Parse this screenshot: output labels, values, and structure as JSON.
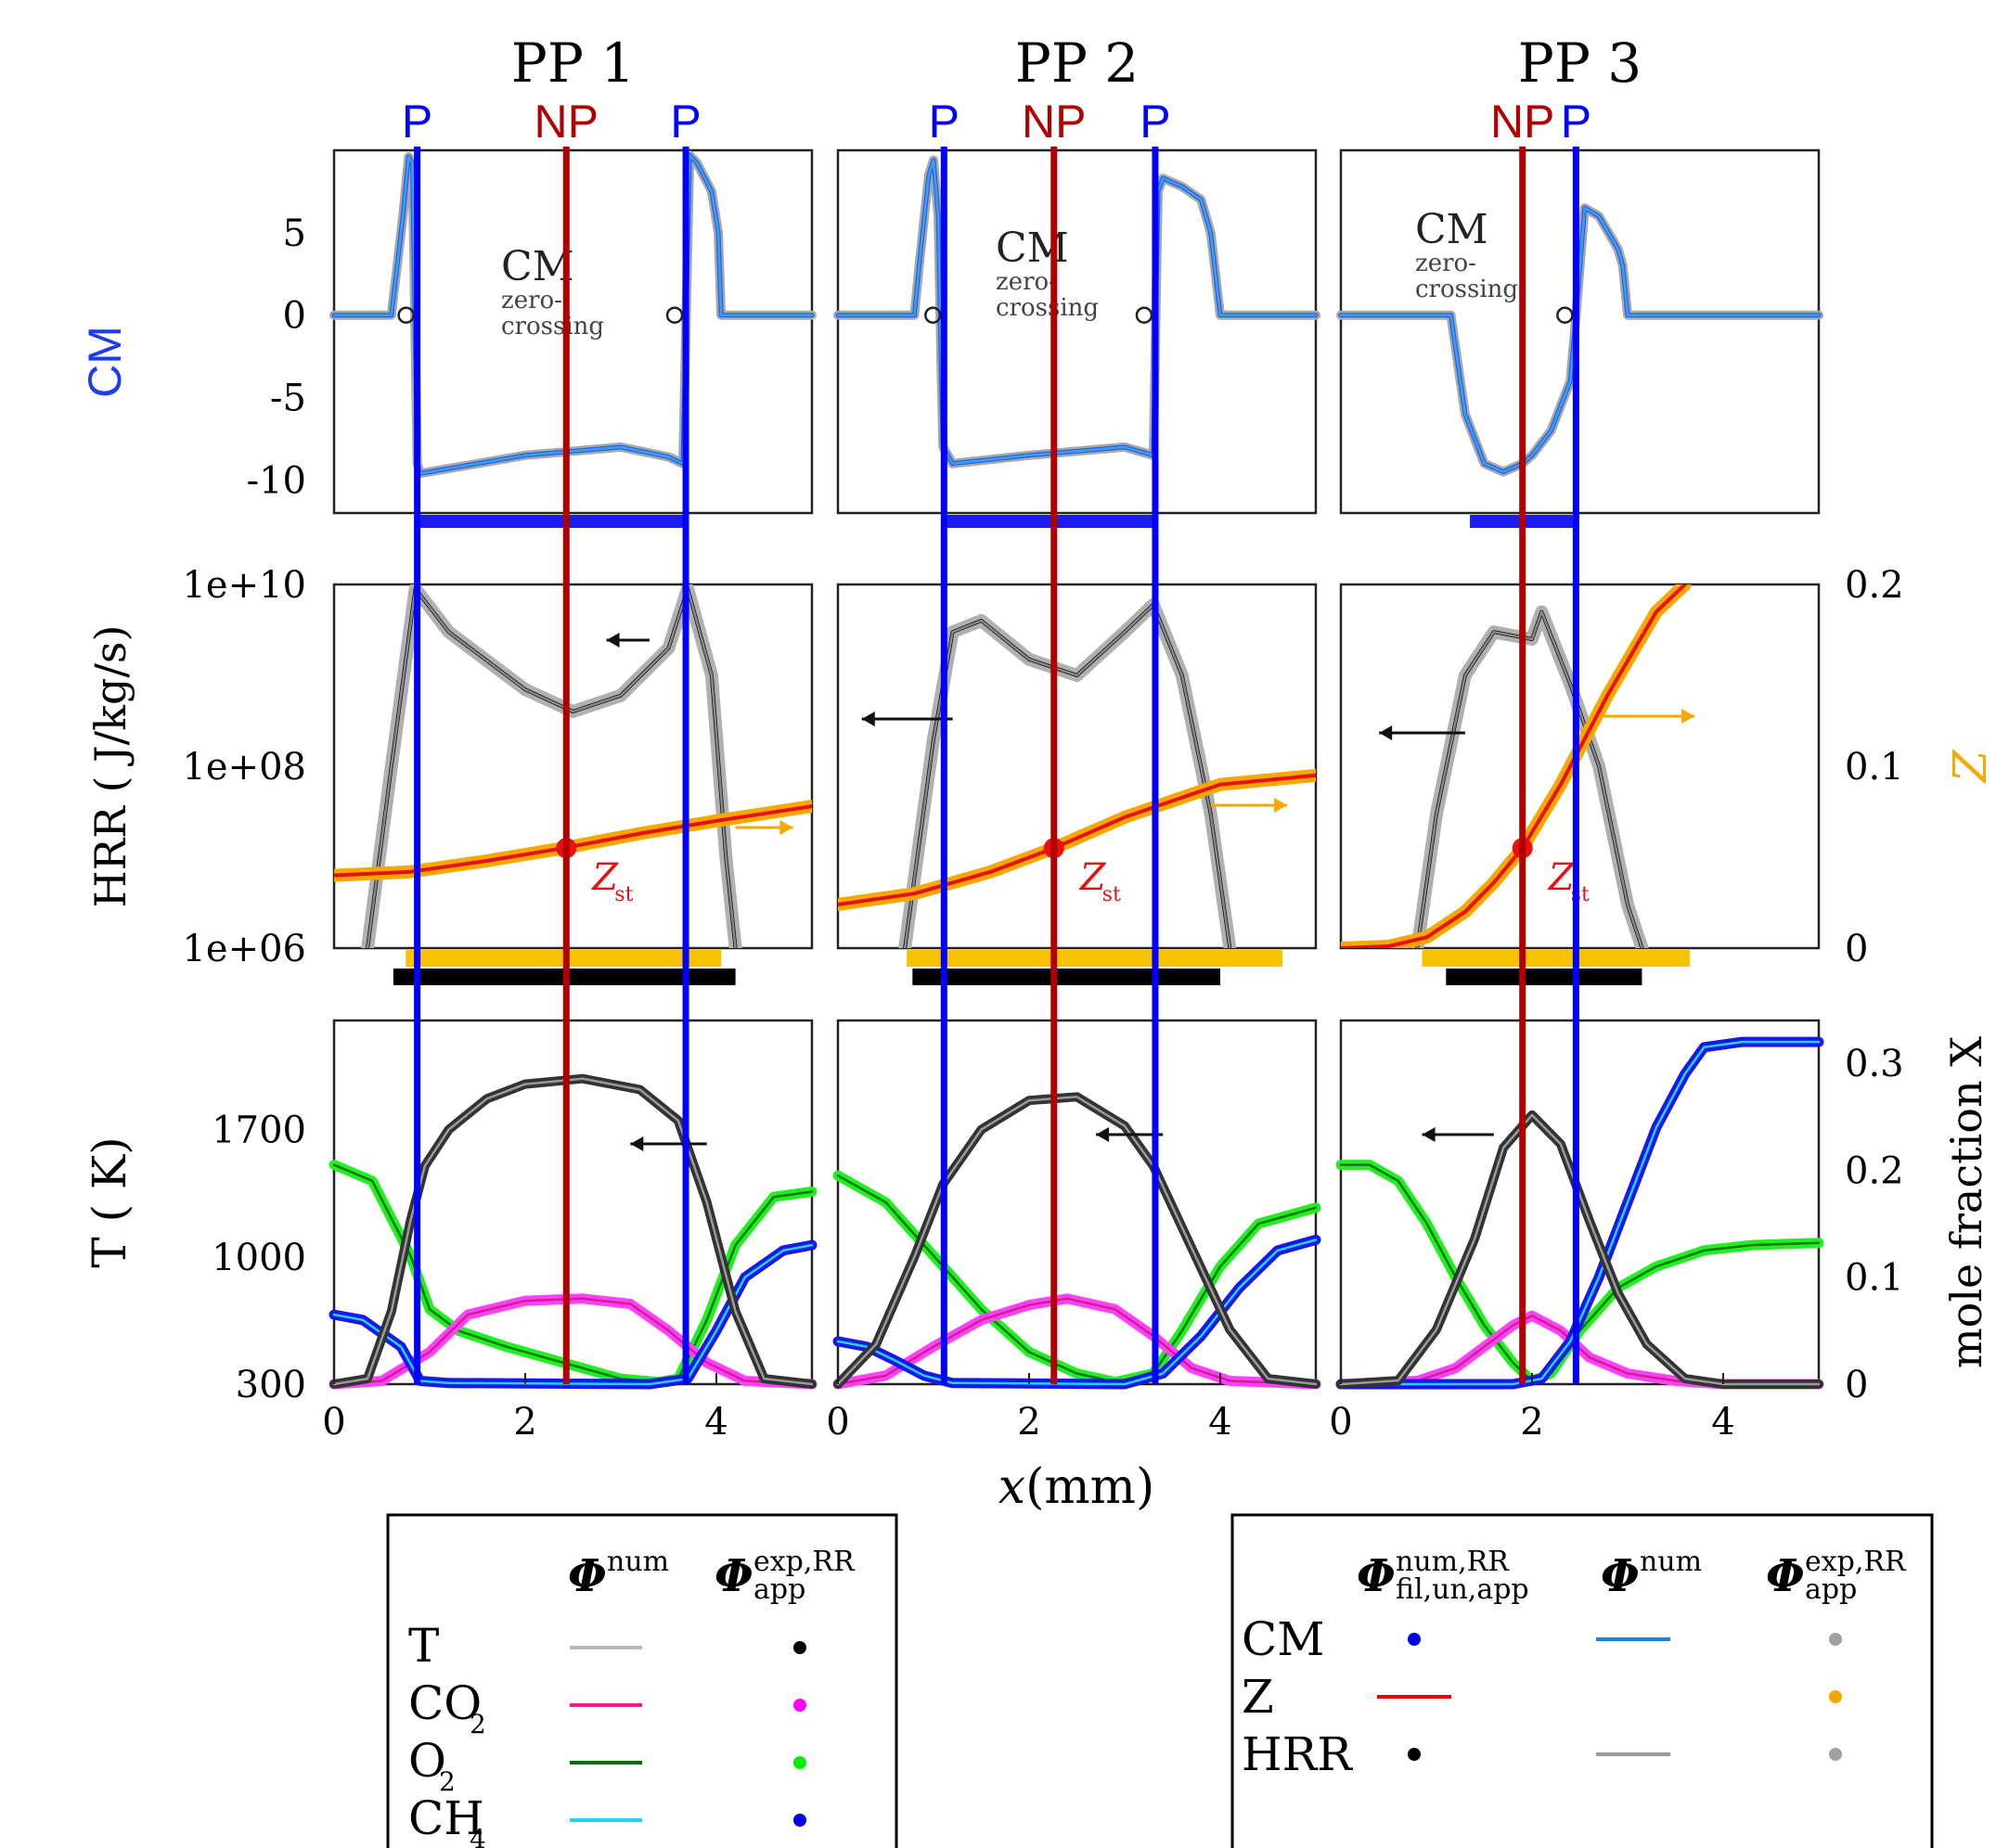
{
  "columns": [
    {
      "title": "PP 1",
      "markers": [
        {
          "label": "P",
          "x": 0.87,
          "color": "#0000ff"
        },
        {
          "label": "NP",
          "x": 2.43,
          "color": "#b00000"
        },
        {
          "label": "P",
          "x": 3.68,
          "color": "#0000ff"
        }
      ]
    },
    {
      "title": "PP 2",
      "markers": [
        {
          "label": "P",
          "x": 1.11,
          "color": "#0000ff"
        },
        {
          "label": "NP",
          "x": 2.26,
          "color": "#b00000"
        },
        {
          "label": "P",
          "x": 3.32,
          "color": "#0000ff"
        }
      ]
    },
    {
      "title": "PP 3",
      "markers": [
        {
          "label": "NP",
          "x": 1.9,
          "color": "#b00000"
        },
        {
          "label": "P",
          "x": 2.46,
          "color": "#0000ff"
        }
      ]
    }
  ],
  "axes": {
    "cm_label": "CM",
    "hrr_label": "HRR ( J/kg/s)",
    "t_label": "T ( K)",
    "z_label": "Z",
    "x_label_var": "x",
    "x_label_unit": "(mm)",
    "mole_label": "mole fraction X",
    "cm_ticks": [
      "5",
      "0",
      "-5",
      "-10"
    ],
    "hrr_ticks": [
      "1e+10",
      "1e+08",
      "1e+06"
    ],
    "t_ticks": [
      "1700",
      "1000",
      "300"
    ],
    "z_ticks": [
      "0.2",
      "0.1",
      "0"
    ],
    "mole_ticks": [
      "0.3",
      "0.2",
      "0.1",
      "0"
    ],
    "x_ticks": [
      "0",
      "2",
      "4"
    ]
  },
  "annotations": {
    "cm": "CM",
    "zero_line1": "zero-",
    "zero_line2": "crossing",
    "zst_main": "Z",
    "zst_sub": "st"
  },
  "legend1": {
    "header_num": "Φ",
    "header_num_sup": "num",
    "header_exp": "Φ",
    "header_exp_sup": "exp,RR",
    "header_exp_sub": "app",
    "rows": [
      {
        "main": "T",
        "sub": "",
        "line_color": "#b8b8b8",
        "dot_color": "#000000"
      },
      {
        "main": "CO",
        "sub": "2",
        "line_color": "#ff1493",
        "dot_color": "#ff00ff"
      },
      {
        "main": "O",
        "sub": "2",
        "line_color": "#007000",
        "dot_color": "#00ee00"
      },
      {
        "main": "CH",
        "sub": "4",
        "line_color": "#22d3f0",
        "dot_color": "#0000ee"
      }
    ]
  },
  "legend2": {
    "h1": "Φ",
    "h1_sup": "num,RR",
    "h1_sub": "fil,un,app",
    "h2": "Φ",
    "h2_sup": "num",
    "h3": "Φ",
    "h3_sup": "exp,RR",
    "h3_sub": "app",
    "rows": [
      {
        "label": "CM",
        "c1": {
          "type": "dot",
          "color": "#0000ee"
        },
        "c2": {
          "type": "line",
          "color": "#1e7fe8"
        },
        "c3": {
          "type": "dot",
          "color": "#a0a0a0"
        }
      },
      {
        "label": "Z",
        "c1": {
          "type": "line",
          "color": "#ee0000"
        },
        "c2": null,
        "c3": {
          "type": "dot",
          "color": "#f7a800"
        }
      },
      {
        "label": "HRR",
        "c1": {
          "type": "dot",
          "color": "#000000"
        },
        "c2": {
          "type": "line",
          "color": "#999999"
        },
        "c3": {
          "type": "dot",
          "color": "#a0a0a0"
        }
      }
    ]
  },
  "chart_data": {
    "type": "line",
    "title": "",
    "xlabel": "x(mm)",
    "xlim": [
      0,
      5
    ],
    "panels": [
      {
        "row": "CM",
        "ylabel": "CM",
        "ylim": [
          -12,
          10
        ],
        "series": [
          {
            "column": "PP 1",
            "x": [
              0,
              0.6,
              0.72,
              0.78,
              0.82,
              0.84,
              0.87,
              0.9,
              1.0,
              2.0,
              3.0,
              3.5,
              3.65,
              3.72,
              3.8,
              3.95,
              4.02,
              4.05,
              5
            ],
            "y": [
              0,
              0,
              6,
              9.6,
              9.2,
              2,
              -9,
              -9.6,
              -9.5,
              -8.5,
              -8,
              -8.6,
              -9,
              9.7,
              9.2,
              7.5,
              5,
              0,
              0
            ]
          },
          {
            "column": "PP 2",
            "x": [
              0,
              0.8,
              0.85,
              0.95,
              1.0,
              1.05,
              1.08,
              1.1,
              1.2,
              2.0,
              3.0,
              3.3,
              3.35,
              3.4,
              3.6,
              3.8,
              3.9,
              4.0,
              5
            ],
            "y": [
              0,
              0,
              3,
              8.5,
              9.4,
              6,
              -3,
              -8,
              -9,
              -8.5,
              -8,
              -8.5,
              7.5,
              8.3,
              7.8,
              7,
              5,
              0,
              0
            ]
          },
          {
            "column": "PP 3",
            "x": [
              0,
              1.15,
              1.2,
              1.3,
              1.5,
              1.7,
              1.9,
              2.0,
              2.2,
              2.4,
              2.46,
              2.55,
              2.7,
              2.9,
              2.95,
              3.0,
              5
            ],
            "y": [
              0,
              0,
              -2,
              -6,
              -9,
              -9.5,
              -9,
              -8.5,
              -7,
              -4,
              0,
              6.5,
              6,
              4,
              3,
              0,
              0
            ]
          }
        ]
      },
      {
        "row": "HRR",
        "ylabel": "HRR ( J/kg/s)",
        "yscale": "log",
        "ylim": [
          1000000.0,
          10000000000.0
        ],
        "series": [
          {
            "column": "PP 1",
            "name": "HRR",
            "x": [
              0.35,
              0.6,
              0.85,
              1.2,
              2.0,
              2.5,
              3.0,
              3.5,
              3.7,
              3.95,
              4.1,
              4.2
            ],
            "y": [
              1000000.0,
              100000000.0,
              9000000000.0,
              3000000000.0,
              700000000.0,
              400000000.0,
              600000000.0,
              2000000000.0,
              9000000000.0,
              1000000000.0,
              10000000.0,
              1000000.0
            ]
          },
          {
            "column": "PP 2",
            "name": "HRR",
            "x": [
              0.7,
              1.0,
              1.2,
              1.5,
              2.0,
              2.5,
              3.0,
              3.3,
              3.6,
              3.9,
              4.1
            ],
            "y": [
              1000000.0,
              200000000.0,
              3000000000.0,
              4000000000.0,
              1500000000.0,
              1000000000.0,
              3000000000.0,
              6000000000.0,
              1000000000.0,
              30000000.0,
              1000000.0
            ]
          },
          {
            "column": "PP 3",
            "name": "HRR",
            "x": [
              0.8,
              1.0,
              1.3,
              1.6,
              2.0,
              2.1,
              2.4,
              2.7,
              3.0,
              3.15
            ],
            "y": [
              1000000.0,
              30000000.0,
              1000000000.0,
              3000000000.0,
              2500000000.0,
              5000000000.0,
              800000000.0,
              100000000.0,
              3000000.0,
              1000000.0
            ]
          },
          {
            "column": "PP 1",
            "name": "Z",
            "x": [
              0,
              0.8,
              1.6,
              2.4,
              3.2,
              4.0,
              5.0
            ],
            "y": [
              0.04,
              0.042,
              0.048,
              0.055,
              0.063,
              0.07,
              0.078
            ]
          },
          {
            "column": "PP 2",
            "name": "Z",
            "x": [
              0,
              0.8,
              1.6,
              2.26,
              3.0,
              4.0,
              5.0
            ],
            "y": [
              0.024,
              0.03,
              0.042,
              0.055,
              0.072,
              0.09,
              0.095
            ]
          },
          {
            "column": "PP 3",
            "name": "Z",
            "x": [
              0,
              0.5,
              0.9,
              1.3,
              1.6,
              1.9,
              2.3,
              2.8,
              3.3,
              3.6
            ],
            "y": [
              0,
              0.001,
              0.006,
              0.02,
              0.036,
              0.055,
              0.09,
              0.14,
              0.185,
              0.2
            ]
          }
        ],
        "zst": 0.055,
        "ylim_right": [
          0,
          0.2
        ]
      },
      {
        "row": "T",
        "ylabel": "T ( K)",
        "ylim": [
          300,
          2300
        ],
        "ylabel_right": "mole fraction X",
        "ylim_right": [
          0,
          0.34
        ],
        "series": [
          {
            "column": "PP 1",
            "name": "T",
            "x": [
              0,
              0.35,
              0.6,
              0.8,
              0.95,
              1.2,
              1.6,
              2.0,
              2.6,
              3.2,
              3.6,
              3.9,
              4.2,
              4.5,
              5.0
            ],
            "y": [
              300,
              330,
              700,
              1200,
              1500,
              1700,
              1870,
              1950,
              1980,
              1920,
              1750,
              1300,
              700,
              330,
              300
            ]
          },
          {
            "column": "PP 1",
            "name": "CO2",
            "x": [
              0,
              0.5,
              1.0,
              1.4,
              2.0,
              2.6,
              3.1,
              3.5,
              3.9,
              4.3,
              5.0
            ],
            "y": [
              0,
              0.003,
              0.03,
              0.065,
              0.078,
              0.08,
              0.075,
              0.05,
              0.02,
              0.003,
              0
            ]
          },
          {
            "column": "PP 1",
            "name": "O2",
            "x": [
              0,
              0.4,
              0.8,
              1.0,
              1.3,
              1.8,
              2.4,
              3.0,
              3.4,
              3.6,
              3.9,
              4.2,
              4.6,
              5.0
            ],
            "y": [
              0.205,
              0.19,
              0.12,
              0.07,
              0.05,
              0.035,
              0.02,
              0.005,
              0.002,
              0.005,
              0.06,
              0.13,
              0.175,
              0.18
            ]
          },
          {
            "column": "PP 1",
            "name": "CH4",
            "x": [
              0,
              0.3,
              0.7,
              0.9,
              1.2,
              3.3,
              3.7,
              4.0,
              4.3,
              4.7,
              5.0
            ],
            "y": [
              0.065,
              0.06,
              0.035,
              0.003,
              0.001,
              0,
              0.005,
              0.05,
              0.1,
              0.125,
              0.13
            ]
          },
          {
            "column": "PP 2",
            "name": "T",
            "x": [
              0,
              0.4,
              0.8,
              1.1,
              1.5,
              2.0,
              2.5,
              3.0,
              3.3,
              3.7,
              4.1,
              4.5,
              5.0
            ],
            "y": [
              300,
              520,
              1000,
              1400,
              1700,
              1860,
              1880,
              1720,
              1500,
              1050,
              600,
              330,
              300
            ]
          },
          {
            "column": "PP 2",
            "name": "CO2",
            "x": [
              0,
              0.5,
              1.0,
              1.5,
              2.0,
              2.4,
              2.9,
              3.3,
              3.7,
              4.1,
              5.0
            ],
            "y": [
              0,
              0.008,
              0.035,
              0.06,
              0.074,
              0.08,
              0.07,
              0.045,
              0.015,
              0.003,
              0
            ]
          },
          {
            "column": "PP 2",
            "name": "O2",
            "x": [
              0,
              0.5,
              1.0,
              1.5,
              2.0,
              2.5,
              2.9,
              3.3,
              3.6,
              4.0,
              4.4,
              5.0
            ],
            "y": [
              0.195,
              0.17,
              0.12,
              0.07,
              0.03,
              0.01,
              0.002,
              0.01,
              0.05,
              0.11,
              0.15,
              0.165
            ]
          },
          {
            "column": "PP 2",
            "name": "CH4",
            "x": [
              0,
              0.3,
              0.6,
              0.9,
              1.2,
              3.0,
              3.4,
              3.8,
              4.2,
              4.6,
              5.0
            ],
            "y": [
              0.04,
              0.035,
              0.022,
              0.008,
              0.001,
              0,
              0.01,
              0.045,
              0.09,
              0.125,
              0.135
            ]
          },
          {
            "column": "PP 3",
            "name": "T",
            "x": [
              0,
              0.6,
              1.0,
              1.4,
              1.7,
              2.0,
              2.3,
              2.6,
              2.9,
              3.2,
              3.6,
              4.0,
              5.0
            ],
            "y": [
              300,
              320,
              600,
              1100,
              1600,
              1780,
              1620,
              1200,
              800,
              520,
              330,
              300,
              300
            ]
          },
          {
            "column": "PP 3",
            "name": "CO2",
            "x": [
              0,
              0.8,
              1.2,
              1.5,
              1.8,
              2.0,
              2.3,
              2.6,
              3.0,
              3.5,
              4.0,
              5.0
            ],
            "y": [
              0,
              0.003,
              0.015,
              0.035,
              0.055,
              0.064,
              0.05,
              0.025,
              0.01,
              0.003,
              0,
              0
            ]
          },
          {
            "column": "PP 3",
            "name": "O2",
            "x": [
              0,
              0.3,
              0.6,
              0.9,
              1.2,
              1.5,
              1.8,
              2.0,
              2.2,
              2.5,
              2.9,
              3.3,
              3.8,
              4.3,
              5.0
            ],
            "y": [
              0.205,
              0.205,
              0.19,
              0.15,
              0.1,
              0.055,
              0.02,
              0.003,
              0.01,
              0.05,
              0.09,
              0.11,
              0.125,
              0.13,
              0.132
            ]
          },
          {
            "column": "PP 3",
            "name": "CH4",
            "x": [
              0,
              1.8,
              2.1,
              2.4,
              2.7,
              3.0,
              3.3,
              3.6,
              3.8,
              4.2,
              5.0
            ],
            "y": [
              0,
              0,
              0.005,
              0.04,
              0.1,
              0.17,
              0.24,
              0.29,
              0.315,
              0.32,
              0.32
            ]
          }
        ]
      }
    ]
  }
}
